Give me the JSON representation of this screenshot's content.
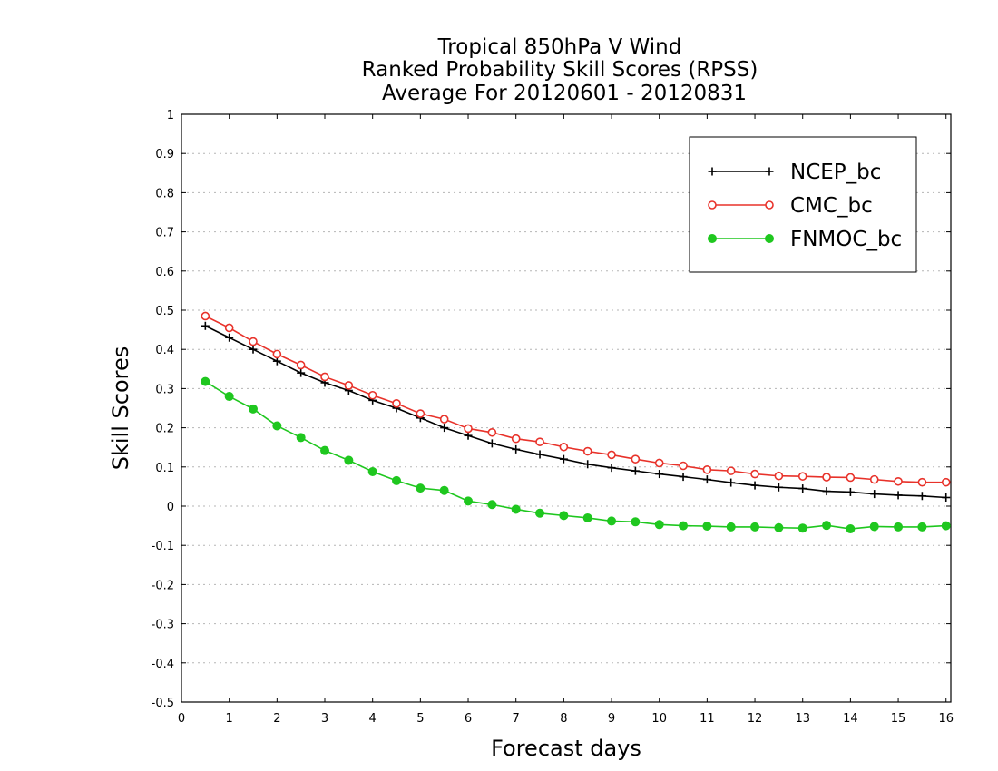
{
  "chart_data": {
    "type": "line",
    "title_lines": [
      "Tropical 850hPa V Wind",
      "Ranked Probability Skill Scores (RPSS)",
      "Average For 20120601 - 20120831"
    ],
    "xlabel": "Forecast days",
    "ylabel": "Skill Scores",
    "xlim": [
      0,
      16.1
    ],
    "ylim": [
      -0.5,
      1
    ],
    "x_ticks": [
      0,
      1,
      2,
      3,
      4,
      5,
      6,
      7,
      8,
      9,
      10,
      11,
      12,
      13,
      14,
      15,
      16
    ],
    "y_ticks": [
      -0.5,
      -0.4,
      -0.3,
      -0.2,
      -0.1,
      0,
      0.1,
      0.2,
      0.3,
      0.4,
      0.5,
      0.6,
      0.7,
      0.8,
      0.9,
      1
    ],
    "y_tick_labels": [
      "-0.5",
      "-0.4",
      "-0.3",
      "-0.2",
      "-0.1",
      "0",
      "0.1",
      "0.2",
      "0.3",
      "0.4",
      "0.5",
      "0.6",
      "0.7",
      "0.8",
      "0.9",
      "1"
    ],
    "grid": "horizontal dotted",
    "legend_position": "top-right",
    "x": [
      0.5,
      1,
      1.5,
      2,
      2.5,
      3,
      3.5,
      4,
      4.5,
      5,
      5.5,
      6,
      6.5,
      7,
      7.5,
      8,
      8.5,
      9,
      9.5,
      10,
      10.5,
      11,
      11.5,
      12,
      12.5,
      13,
      13.5,
      14,
      14.5,
      15,
      15.5,
      16
    ],
    "series": [
      {
        "name": "NCEP_bc",
        "color": "#000000",
        "marker": "plus",
        "values": [
          0.46,
          0.43,
          0.4,
          0.37,
          0.34,
          0.315,
          0.295,
          0.27,
          0.25,
          0.225,
          0.2,
          0.18,
          0.16,
          0.145,
          0.132,
          0.12,
          0.107,
          0.098,
          0.09,
          0.082,
          0.075,
          0.068,
          0.06,
          0.053,
          0.048,
          0.045,
          0.038,
          0.036,
          0.031,
          0.028,
          0.026,
          0.022
        ]
      },
      {
        "name": "CMC_bc",
        "color": "#e8322a",
        "marker": "open-circle",
        "values": [
          0.485,
          0.455,
          0.42,
          0.388,
          0.36,
          0.33,
          0.308,
          0.283,
          0.262,
          0.236,
          0.222,
          0.198,
          0.188,
          0.172,
          0.164,
          0.151,
          0.14,
          0.131,
          0.12,
          0.11,
          0.103,
          0.093,
          0.09,
          0.082,
          0.077,
          0.076,
          0.074,
          0.073,
          0.068,
          0.063,
          0.061,
          0.061
        ]
      },
      {
        "name": "FNMOC_bc",
        "color": "#1fc71f",
        "marker": "filled-circle",
        "values": [
          0.318,
          0.28,
          0.248,
          0.205,
          0.175,
          0.142,
          0.117,
          0.088,
          0.065,
          0.046,
          0.04,
          0.013,
          0.004,
          -0.008,
          -0.018,
          -0.024,
          -0.03,
          -0.038,
          -0.04,
          -0.047,
          -0.05,
          -0.051,
          -0.053,
          -0.053,
          -0.055,
          -0.056,
          -0.049,
          -0.058,
          -0.052,
          -0.053,
          -0.053,
          -0.05
        ]
      }
    ]
  }
}
